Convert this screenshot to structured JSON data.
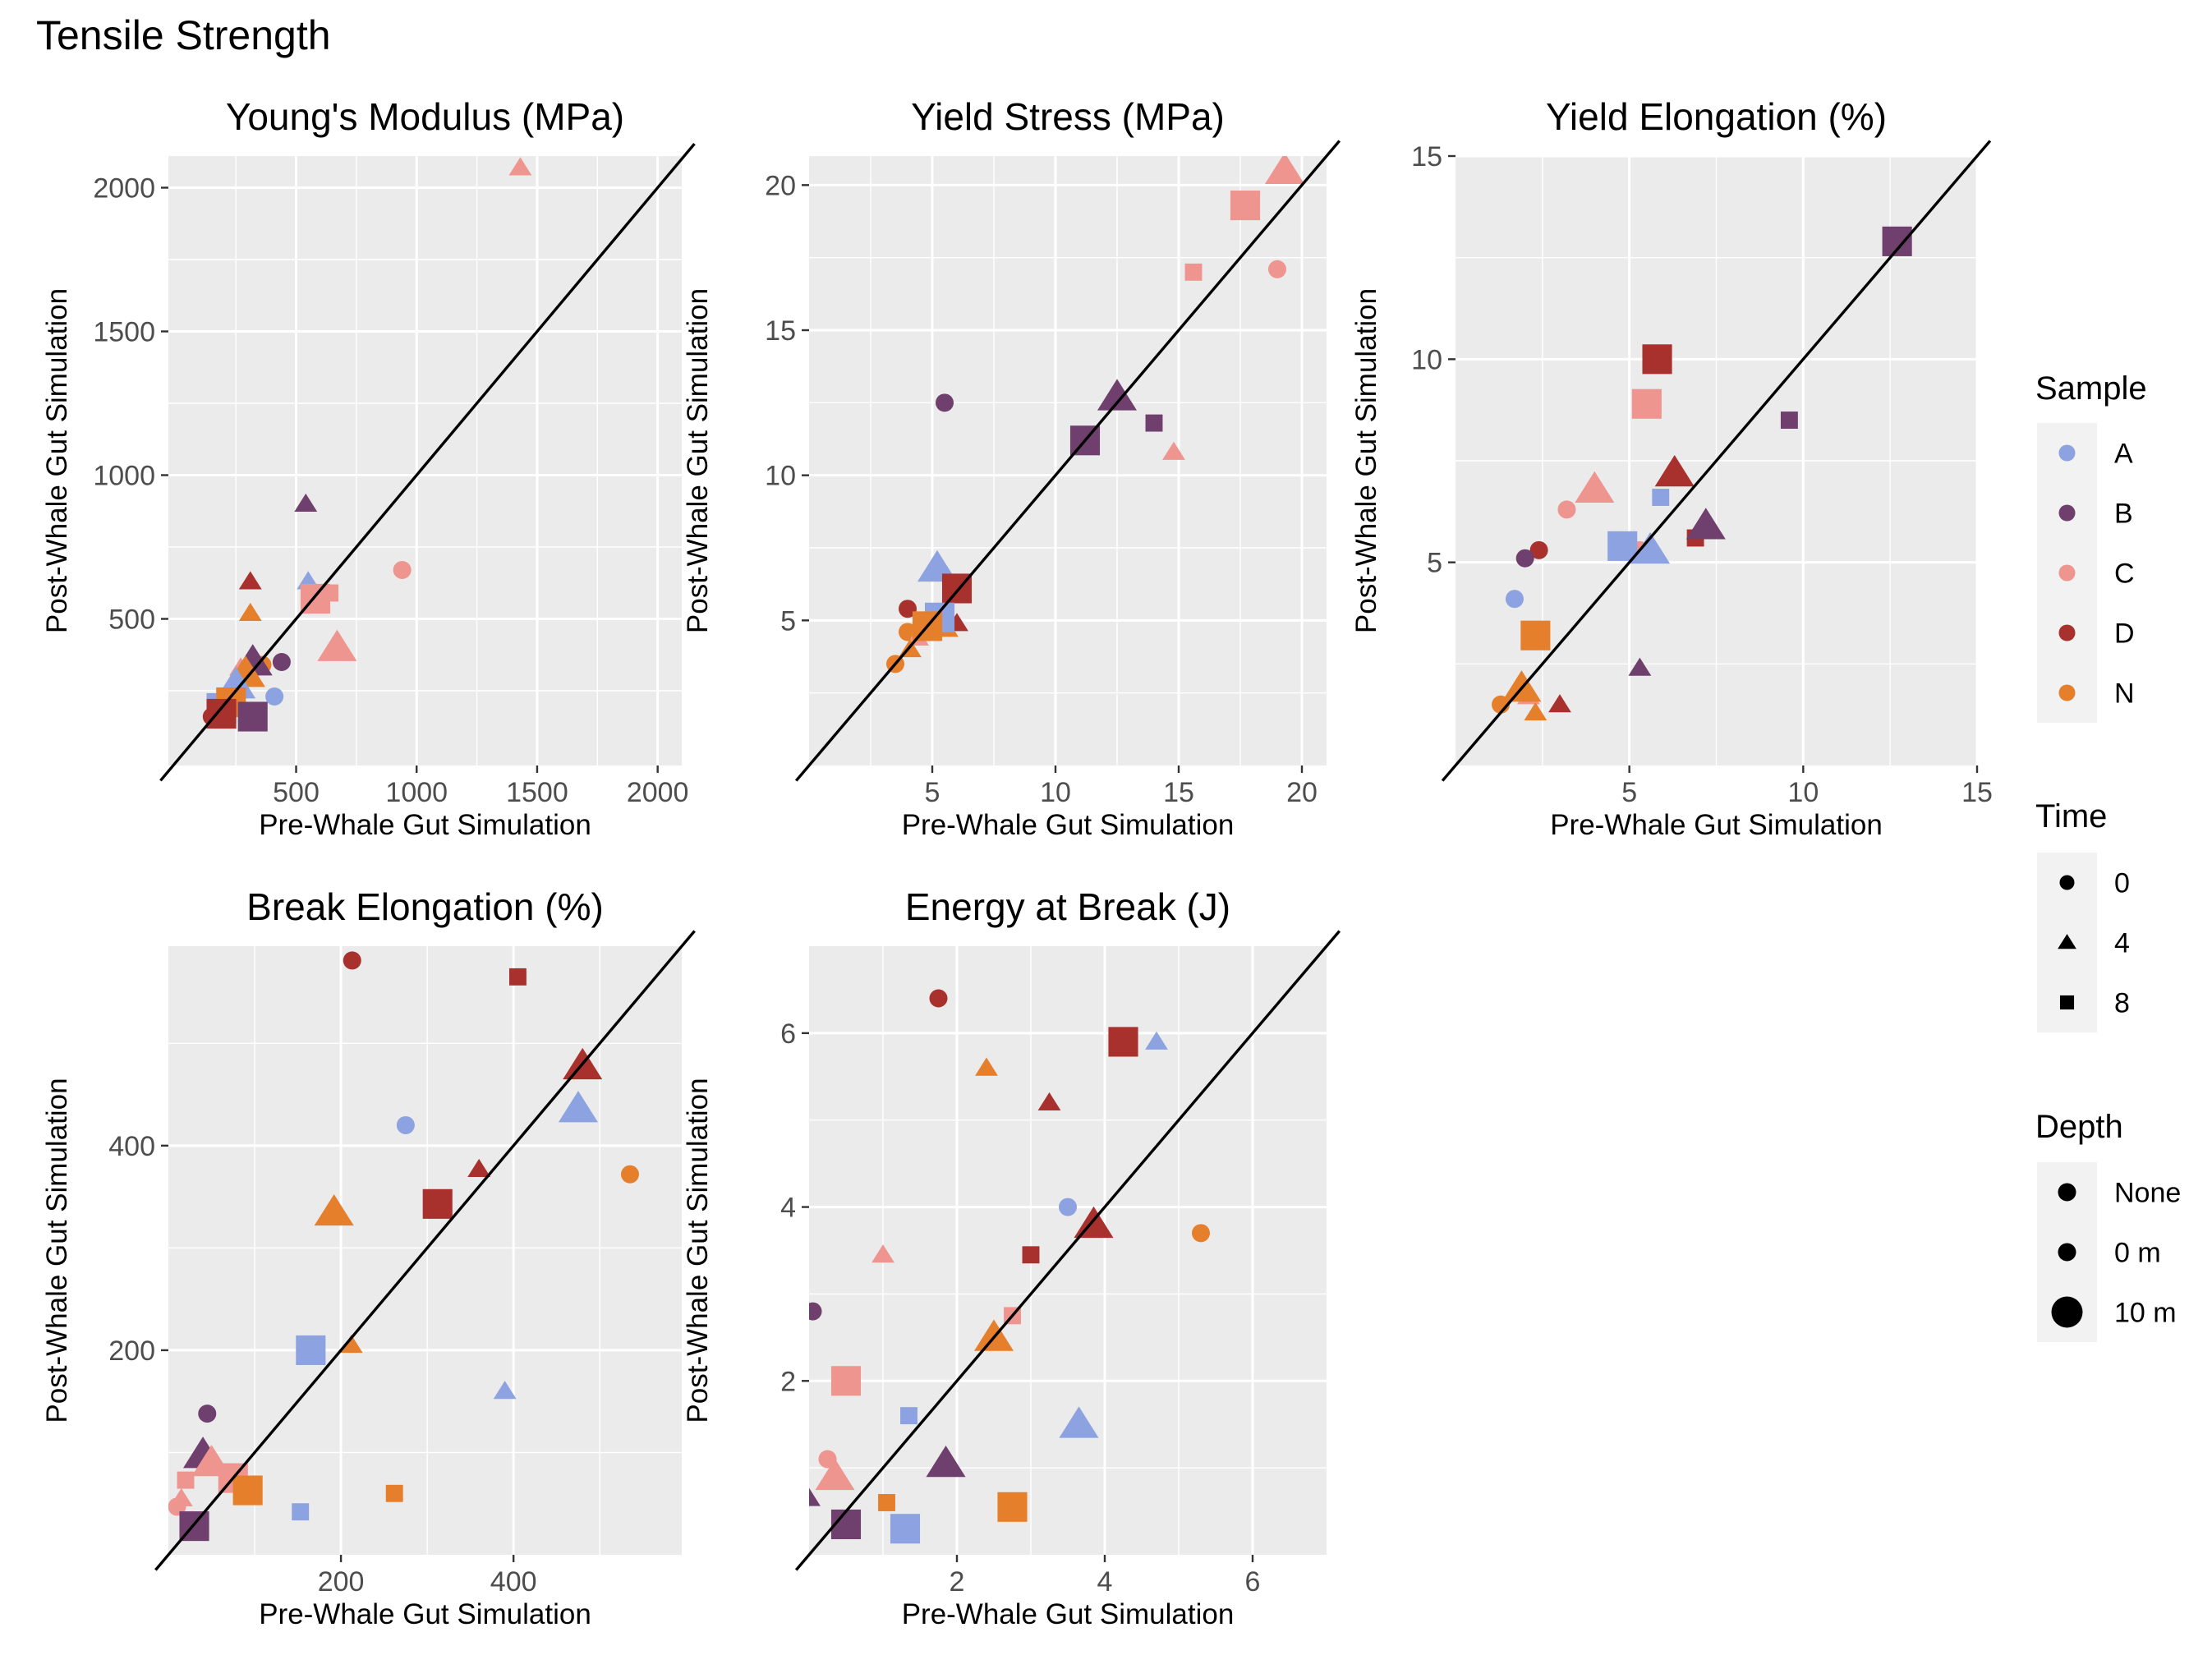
{
  "figure_title": "Tensile Strength",
  "colors": {
    "A": "#8da3e1",
    "B": "#6f3f6d",
    "C": "#ee9590",
    "D": "#a8302d",
    "N": "#e67f2b",
    "panel_bg": "#ebebeb",
    "grid": "#ffffff",
    "identity_line": "#000000"
  },
  "legend": {
    "sample": {
      "title": "Sample",
      "items": [
        "A",
        "B",
        "C",
        "D",
        "N"
      ]
    },
    "time": {
      "title": "Time",
      "items": [
        "0",
        "4",
        "8"
      ]
    },
    "depth": {
      "title": "Depth",
      "items": [
        "None",
        "0 m",
        "10 m"
      ]
    }
  },
  "chart_data": [
    {
      "type": "scatter",
      "title": "Young's Modulus (MPa)",
      "xlabel": "Pre-Whale Gut Simulation",
      "ylabel": "Post-Whale Gut Simulation",
      "xlim": [
        -30,
        2100
      ],
      "ylim": [
        -10,
        2110
      ],
      "xticks": [
        500,
        1000,
        1500,
        2000
      ],
      "yticks": [
        500,
        1000,
        1500,
        2000
      ],
      "identity_line": true,
      "points": [
        {
          "x": 1430,
          "y": 2070,
          "sample": "C",
          "time": "4",
          "depth": "0 m"
        },
        {
          "x": 540,
          "y": 900,
          "sample": "B",
          "time": "4",
          "depth": "0 m"
        },
        {
          "x": 940,
          "y": 670,
          "sample": "C",
          "time": "0",
          "depth": "0 m"
        },
        {
          "x": 310,
          "y": 630,
          "sample": "D",
          "time": "4",
          "depth": "0 m"
        },
        {
          "x": 550,
          "y": 630,
          "sample": "A",
          "time": "4",
          "depth": "0 m"
        },
        {
          "x": 640,
          "y": 590,
          "sample": "C",
          "time": "8",
          "depth": "0 m"
        },
        {
          "x": 580,
          "y": 570,
          "sample": "C",
          "time": "8",
          "depth": "10 m"
        },
        {
          "x": 310,
          "y": 520,
          "sample": "N",
          "time": "4",
          "depth": "0 m"
        },
        {
          "x": 670,
          "y": 400,
          "sample": "C",
          "time": "4",
          "depth": "10 m"
        },
        {
          "x": 440,
          "y": 350,
          "sample": "B",
          "time": "0",
          "depth": "0 m"
        },
        {
          "x": 360,
          "y": 340,
          "sample": "N",
          "time": "0",
          "depth": "0 m"
        },
        {
          "x": 320,
          "y": 350,
          "sample": "B",
          "time": "4",
          "depth": "10 m"
        },
        {
          "x": 290,
          "y": 310,
          "sample": "N",
          "time": "4",
          "depth": "10 m"
        },
        {
          "x": 270,
          "y": 330,
          "sample": "C",
          "time": "4",
          "depth": "0 m"
        },
        {
          "x": 300,
          "y": 300,
          "sample": "N",
          "time": "8",
          "depth": "0 m"
        },
        {
          "x": 250,
          "y": 270,
          "sample": "A",
          "time": "4",
          "depth": "10 m"
        },
        {
          "x": 410,
          "y": 230,
          "sample": "A",
          "time": "0",
          "depth": "0 m"
        },
        {
          "x": 190,
          "y": 190,
          "sample": "A",
          "time": "8",
          "depth": "10 m"
        },
        {
          "x": 230,
          "y": 210,
          "sample": "N",
          "time": "8",
          "depth": "10 m"
        },
        {
          "x": 190,
          "y": 170,
          "sample": "D",
          "time": "8",
          "depth": "10 m"
        },
        {
          "x": 320,
          "y": 160,
          "sample": "B",
          "time": "8",
          "depth": "10 m"
        },
        {
          "x": 150,
          "y": 160,
          "sample": "D",
          "time": "0",
          "depth": "0 m"
        }
      ]
    },
    {
      "type": "scatter",
      "title": "Yield Stress (MPa)",
      "xlabel": "Pre-Whale Gut Simulation",
      "ylabel": "Post-Whale Gut Simulation",
      "xlim": [
        0,
        21
      ],
      "ylim": [
        0,
        21
      ],
      "xticks": [
        5,
        10,
        15,
        20
      ],
      "yticks": [
        5,
        10,
        15,
        20
      ],
      "identity_line": true,
      "points": [
        {
          "x": 19.3,
          "y": 20.5,
          "sample": "C",
          "time": "4",
          "depth": "10 m"
        },
        {
          "x": 17.7,
          "y": 19.3,
          "sample": "C",
          "time": "8",
          "depth": "10 m"
        },
        {
          "x": 19.0,
          "y": 17.1,
          "sample": "C",
          "time": "0",
          "depth": "0 m"
        },
        {
          "x": 15.6,
          "y": 17.0,
          "sample": "C",
          "time": "8",
          "depth": "0 m"
        },
        {
          "x": 12.5,
          "y": 12.7,
          "sample": "B",
          "time": "4",
          "depth": "10 m"
        },
        {
          "x": 5.5,
          "y": 12.5,
          "sample": "B",
          "time": "0",
          "depth": "0 m"
        },
        {
          "x": 14.0,
          "y": 11.8,
          "sample": "B",
          "time": "8",
          "depth": "0 m"
        },
        {
          "x": 11.2,
          "y": 11.2,
          "sample": "B",
          "time": "8",
          "depth": "10 m"
        },
        {
          "x": 14.8,
          "y": 10.8,
          "sample": "C",
          "time": "4",
          "depth": "0 m"
        },
        {
          "x": 5.2,
          "y": 6.8,
          "sample": "A",
          "time": "4",
          "depth": "10 m"
        },
        {
          "x": 6.0,
          "y": 6.1,
          "sample": "D",
          "time": "8",
          "depth": "10 m"
        },
        {
          "x": 4.0,
          "y": 5.4,
          "sample": "D",
          "time": "0",
          "depth": "0 m"
        },
        {
          "x": 5.3,
          "y": 5.1,
          "sample": "A",
          "time": "8",
          "depth": "10 m"
        },
        {
          "x": 6.0,
          "y": 4.9,
          "sample": "D",
          "time": "4",
          "depth": "0 m"
        },
        {
          "x": 4.8,
          "y": 4.8,
          "sample": "N",
          "time": "8",
          "depth": "10 m"
        },
        {
          "x": 5.6,
          "y": 4.7,
          "sample": "N",
          "time": "4",
          "depth": "0 m"
        },
        {
          "x": 4.0,
          "y": 4.6,
          "sample": "N",
          "time": "0",
          "depth": "0 m"
        },
        {
          "x": 4.4,
          "y": 4.4,
          "sample": "C",
          "time": "4",
          "depth": "0 m"
        },
        {
          "x": 4.1,
          "y": 4.0,
          "sample": "N",
          "time": "4",
          "depth": "0 m"
        },
        {
          "x": 3.5,
          "y": 3.5,
          "sample": "N",
          "time": "0",
          "depth": "0 m"
        }
      ]
    },
    {
      "type": "scatter",
      "title": "Yield Elongation (%)",
      "xlabel": "Pre-Whale Gut Simulation",
      "ylabel": "Post-Whale Gut Simulation",
      "xlim": [
        0,
        15
      ],
      "ylim": [
        0,
        15
      ],
      "xticks": [
        5,
        10,
        15
      ],
      "yticks": [
        5,
        10,
        15
      ],
      "identity_line": true,
      "points": [
        {
          "x": 12.7,
          "y": 12.9,
          "sample": "B",
          "time": "8",
          "depth": "10 m"
        },
        {
          "x": 5.8,
          "y": 10.0,
          "sample": "D",
          "time": "8",
          "depth": "10 m"
        },
        {
          "x": 5.5,
          "y": 8.9,
          "sample": "C",
          "time": "8",
          "depth": "10 m"
        },
        {
          "x": 9.6,
          "y": 8.5,
          "sample": "B",
          "time": "8",
          "depth": "0 m"
        },
        {
          "x": 6.3,
          "y": 7.2,
          "sample": "D",
          "time": "4",
          "depth": "10 m"
        },
        {
          "x": 4.0,
          "y": 6.8,
          "sample": "C",
          "time": "4",
          "depth": "10 m"
        },
        {
          "x": 5.9,
          "y": 6.6,
          "sample": "A",
          "time": "8",
          "depth": "0 m"
        },
        {
          "x": 3.2,
          "y": 6.3,
          "sample": "C",
          "time": "0",
          "depth": "0 m"
        },
        {
          "x": 7.2,
          "y": 5.9,
          "sample": "B",
          "time": "4",
          "depth": "10 m"
        },
        {
          "x": 6.9,
          "y": 5.6,
          "sample": "D",
          "time": "8",
          "depth": "0 m"
        },
        {
          "x": 2.4,
          "y": 5.3,
          "sample": "D",
          "time": "0",
          "depth": "0 m"
        },
        {
          "x": 2.0,
          "y": 5.1,
          "sample": "B",
          "time": "0",
          "depth": "0 m"
        },
        {
          "x": 4.8,
          "y": 5.4,
          "sample": "A",
          "time": "8",
          "depth": "10 m"
        },
        {
          "x": 5.6,
          "y": 5.3,
          "sample": "A",
          "time": "4",
          "depth": "10 m"
        },
        {
          "x": 5.3,
          "y": 5.3,
          "sample": "C",
          "time": "0",
          "depth": "0 m"
        },
        {
          "x": 1.7,
          "y": 4.1,
          "sample": "A",
          "time": "0",
          "depth": "0 m"
        },
        {
          "x": 2.3,
          "y": 3.2,
          "sample": "N",
          "time": "8",
          "depth": "10 m"
        },
        {
          "x": 5.3,
          "y": 2.4,
          "sample": "B",
          "time": "4",
          "depth": "0 m"
        },
        {
          "x": 1.9,
          "y": 1.9,
          "sample": "N",
          "time": "4",
          "depth": "10 m"
        },
        {
          "x": 2.1,
          "y": 1.7,
          "sample": "C",
          "time": "4",
          "depth": "0 m"
        },
        {
          "x": 3.0,
          "y": 1.5,
          "sample": "D",
          "time": "4",
          "depth": "0 m"
        },
        {
          "x": 1.3,
          "y": 1.5,
          "sample": "N",
          "time": "0",
          "depth": "0 m"
        },
        {
          "x": 2.3,
          "y": 1.3,
          "sample": "N",
          "time": "4",
          "depth": "0 m"
        }
      ]
    },
    {
      "type": "scatter",
      "title": "Break Elongation (%)",
      "xlabel": "Pre-Whale Gut Simulation",
      "ylabel": "Post-Whale Gut Simulation",
      "xlim": [
        0,
        595
      ],
      "ylim": [
        0,
        595
      ],
      "xticks": [
        200,
        400
      ],
      "yticks": [
        200,
        400
      ],
      "identity_line": true,
      "points": [
        {
          "x": 213,
          "y": 581,
          "sample": "D",
          "time": "0",
          "depth": "0 m"
        },
        {
          "x": 405,
          "y": 565,
          "sample": "D",
          "time": "8",
          "depth": "0 m"
        },
        {
          "x": 480,
          "y": 478,
          "sample": "D",
          "time": "4",
          "depth": "10 m"
        },
        {
          "x": 475,
          "y": 436,
          "sample": "A",
          "time": "4",
          "depth": "10 m"
        },
        {
          "x": 275,
          "y": 420,
          "sample": "A",
          "time": "0",
          "depth": "0 m"
        },
        {
          "x": 360,
          "y": 377,
          "sample": "D",
          "time": "4",
          "depth": "0 m"
        },
        {
          "x": 535,
          "y": 372,
          "sample": "N",
          "time": "0",
          "depth": "0 m"
        },
        {
          "x": 312,
          "y": 343,
          "sample": "D",
          "time": "8",
          "depth": "10 m"
        },
        {
          "x": 192,
          "y": 335,
          "sample": "N",
          "time": "4",
          "depth": "10 m"
        },
        {
          "x": 212,
          "y": 205,
          "sample": "N",
          "time": "4",
          "depth": "0 m"
        },
        {
          "x": 165,
          "y": 200,
          "sample": "A",
          "time": "8",
          "depth": "10 m"
        },
        {
          "x": 390,
          "y": 160,
          "sample": "A",
          "time": "4",
          "depth": "0 m"
        },
        {
          "x": 45,
          "y": 138,
          "sample": "B",
          "time": "0",
          "depth": "0 m"
        },
        {
          "x": 40,
          "y": 98,
          "sample": "B",
          "time": "4",
          "depth": "10 m"
        },
        {
          "x": 50,
          "y": 90,
          "sample": "C",
          "time": "4",
          "depth": "10 m"
        },
        {
          "x": 75,
          "y": 75,
          "sample": "C",
          "time": "8",
          "depth": "10 m"
        },
        {
          "x": 20,
          "y": 73,
          "sample": "C",
          "time": "8",
          "depth": "0 m"
        },
        {
          "x": 92,
          "y": 63,
          "sample": "N",
          "time": "8",
          "depth": "10 m"
        },
        {
          "x": 262,
          "y": 60,
          "sample": "N",
          "time": "8",
          "depth": "0 m"
        },
        {
          "x": 15,
          "y": 55,
          "sample": "C",
          "time": "4",
          "depth": "0 m"
        },
        {
          "x": 10,
          "y": 47,
          "sample": "C",
          "time": "0",
          "depth": "0 m"
        },
        {
          "x": 153,
          "y": 42,
          "sample": "A",
          "time": "8",
          "depth": "0 m"
        },
        {
          "x": 30,
          "y": 28,
          "sample": "B",
          "time": "8",
          "depth": "10 m"
        }
      ]
    },
    {
      "type": "scatter",
      "title": "Energy at Break (J)",
      "xlabel": "Pre-Whale Gut Simulation",
      "ylabel": "Post-Whale Gut Simulation",
      "xlim": [
        0,
        7
      ],
      "ylim": [
        0,
        7
      ],
      "xticks": [
        2,
        4,
        6
      ],
      "yticks": [
        2,
        4,
        6
      ],
      "identity_line": true,
      "points": [
        {
          "x": 1.75,
          "y": 6.4,
          "sample": "D",
          "time": "0",
          "depth": "0 m"
        },
        {
          "x": 4.25,
          "y": 5.9,
          "sample": "D",
          "time": "8",
          "depth": "10 m"
        },
        {
          "x": 4.7,
          "y": 5.9,
          "sample": "A",
          "time": "4",
          "depth": "0 m"
        },
        {
          "x": 2.4,
          "y": 5.6,
          "sample": "N",
          "time": "4",
          "depth": "0 m"
        },
        {
          "x": 3.25,
          "y": 5.2,
          "sample": "D",
          "time": "4",
          "depth": "0 m"
        },
        {
          "x": 3.5,
          "y": 4.0,
          "sample": "A",
          "time": "0",
          "depth": "0 m"
        },
        {
          "x": 3.85,
          "y": 3.8,
          "sample": "D",
          "time": "4",
          "depth": "10 m"
        },
        {
          "x": 5.3,
          "y": 3.7,
          "sample": "N",
          "time": "0",
          "depth": "0 m"
        },
        {
          "x": 3.0,
          "y": 3.45,
          "sample": "D",
          "time": "8",
          "depth": "0 m"
        },
        {
          "x": 1.0,
          "y": 3.45,
          "sample": "C",
          "time": "4",
          "depth": "0 m"
        },
        {
          "x": 0.05,
          "y": 2.8,
          "sample": "B",
          "time": "0",
          "depth": "0 m"
        },
        {
          "x": 2.75,
          "y": 2.75,
          "sample": "C",
          "time": "8",
          "depth": "0 m"
        },
        {
          "x": 2.5,
          "y": 2.5,
          "sample": "N",
          "time": "4",
          "depth": "10 m"
        },
        {
          "x": 0.5,
          "y": 2.0,
          "sample": "C",
          "time": "8",
          "depth": "10 m"
        },
        {
          "x": 1.35,
          "y": 1.6,
          "sample": "A",
          "time": "8",
          "depth": "0 m"
        },
        {
          "x": 3.65,
          "y": 1.5,
          "sample": "A",
          "time": "4",
          "depth": "10 m"
        },
        {
          "x": 0.25,
          "y": 1.1,
          "sample": "C",
          "time": "0",
          "depth": "0 m"
        },
        {
          "x": 1.85,
          "y": 1.05,
          "sample": "B",
          "time": "4",
          "depth": "10 m"
        },
        {
          "x": 0.35,
          "y": 0.9,
          "sample": "C",
          "time": "4",
          "depth": "10 m"
        },
        {
          "x": 0.0,
          "y": 0.65,
          "sample": "B",
          "time": "4",
          "depth": "0 m"
        },
        {
          "x": 1.05,
          "y": 0.6,
          "sample": "N",
          "time": "8",
          "depth": "0 m"
        },
        {
          "x": 2.75,
          "y": 0.55,
          "sample": "N",
          "time": "8",
          "depth": "10 m"
        },
        {
          "x": 0.5,
          "y": 0.35,
          "sample": "B",
          "time": "8",
          "depth": "10 m"
        },
        {
          "x": 1.3,
          "y": 0.3,
          "sample": "A",
          "time": "8",
          "depth": "10 m"
        }
      ]
    }
  ]
}
